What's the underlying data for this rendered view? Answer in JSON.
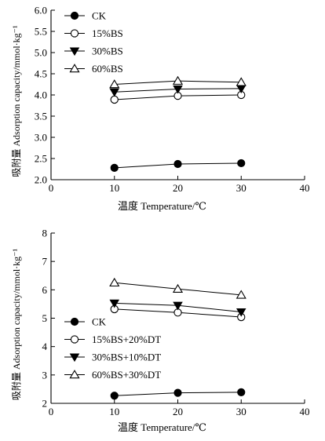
{
  "chart_data": [
    {
      "type": "line",
      "xlabel": "温度 Temperature/℃",
      "ylabel": "吸附量 Adsorption capacity/mmol·kg⁻¹",
      "xlim": [
        0,
        40
      ],
      "ylim": [
        2.0,
        6.0
      ],
      "xticks": [
        "0",
        "10",
        "20",
        "30",
        "40"
      ],
      "yticks": [
        "2.0",
        "2.5",
        "3.0",
        "3.5",
        "4.0",
        "4.5",
        "5.0",
        "5.5",
        "6.0"
      ],
      "grid": false,
      "legend_position": "top-left",
      "x": [
        10,
        20,
        30
      ],
      "series": [
        {
          "name": "CK",
          "marker": "filled-circle",
          "values": [
            2.28,
            2.37,
            2.39
          ]
        },
        {
          "name": "15%BS",
          "marker": "open-circle",
          "values": [
            3.89,
            3.98,
            4.0
          ]
        },
        {
          "name": "30%BS",
          "marker": "filled-triangle-down",
          "values": [
            4.07,
            4.14,
            4.15
          ]
        },
        {
          "name": "60%BS",
          "marker": "open-triangle-up",
          "values": [
            4.25,
            4.33,
            4.3
          ]
        }
      ]
    },
    {
      "type": "line",
      "xlabel": "温度 Temperature/℃",
      "ylabel": "吸附量 Adsorption capacity/mmol·kg⁻¹",
      "xlim": [
        0,
        40
      ],
      "ylim": [
        2,
        8
      ],
      "xticks": [
        "0",
        "10",
        "20",
        "30",
        "40"
      ],
      "yticks": [
        "2",
        "3",
        "4",
        "5",
        "6",
        "7",
        "8"
      ],
      "grid": false,
      "legend_position": "bottom-left",
      "x": [
        10,
        20,
        30
      ],
      "series": [
        {
          "name": "CK",
          "marker": "filled-circle",
          "values": [
            2.27,
            2.37,
            2.39
          ]
        },
        {
          "name": "15%BS+20%DT",
          "marker": "open-circle",
          "values": [
            5.32,
            5.2,
            5.04
          ]
        },
        {
          "name": "30%BS+10%DT",
          "marker": "filled-triangle-down",
          "values": [
            5.53,
            5.45,
            5.22
          ]
        },
        {
          "name": "60%BS+30%DT",
          "marker": "open-triangle-up",
          "values": [
            6.25,
            6.03,
            5.82
          ]
        }
      ]
    }
  ]
}
